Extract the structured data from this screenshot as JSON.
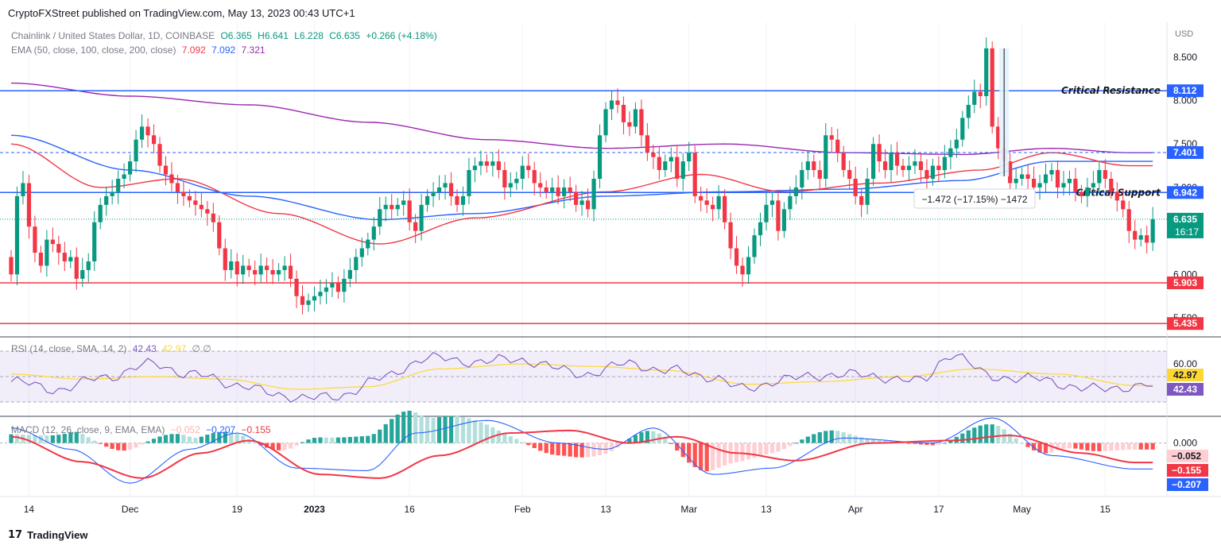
{
  "header": {
    "published": "CryptoFXStreet published on TradingView.com, May 13, 2023 00:43 UTC+1"
  },
  "footer": {
    "brand": "TradingView"
  },
  "legend": {
    "symbol": "Chainlink / United States Dollar, 1D, COINBASE",
    "o": "O6.365",
    "h": "H6.641",
    "l": "L6.228",
    "c": "C6.635",
    "chg": "+0.266 (+4.18%)",
    "ema_label": "EMA (50, close, 100, close, 200, close)",
    "ema50": "7.092",
    "ema100": "7.092",
    "ema200": "7.321",
    "rsi_label": "RSI (14, close, SMA, 14, 2)",
    "rsi_val": "42.43",
    "rsi_sma": "42.97",
    "rsi_extra": "∅ ∅",
    "macd_label": "MACD (12, 26, close, 9, EMA, EMA)",
    "macd_hist": "−0.052",
    "macd_line": "−0.207",
    "macd_signal": "−0.155"
  },
  "colors": {
    "up": "#089981",
    "down": "#f23645",
    "ema50": "#f23645",
    "ema100": "#2962ff",
    "ema200": "#9c27b0",
    "rsi": "#7e57c2",
    "rsi_sma": "#fdd835",
    "hline_blue": "#2962ff",
    "hline_red": "#f23645"
  },
  "chart_data": [
    {
      "type": "candlestick",
      "title": "Chainlink / United States Dollar, 1D, COINBASE",
      "ylabel": "USD",
      "ylim": [
        5.3,
        8.9
      ],
      "y_ticks": [
        "8.500",
        "8.000",
        "7.500",
        "7.000",
        "6.500",
        "6.000",
        "5.500"
      ],
      "x_tick_labels": [
        "14",
        "Dec",
        "19",
        "2023",
        "16",
        "Feb",
        "13",
        "Mar",
        "13",
        "Apr",
        "17",
        "May",
        "15"
      ],
      "x_tick_days": [
        3,
        20,
        38,
        51,
        67,
        86,
        100,
        114,
        127,
        142,
        156,
        170,
        184
      ],
      "closes": [
        6.0,
        6.9,
        7.05,
        6.55,
        6.25,
        6.1,
        6.4,
        6.35,
        6.25,
        6.15,
        6.2,
        5.95,
        6.05,
        6.15,
        6.6,
        6.8,
        6.9,
        6.95,
        7.1,
        7.15,
        7.3,
        7.55,
        7.7,
        7.6,
        7.5,
        7.25,
        7.15,
        7.05,
        6.95,
        6.9,
        6.85,
        6.8,
        6.75,
        6.7,
        6.6,
        6.3,
        6.05,
        6.15,
        6.0,
        6.1,
        6.05,
        6.0,
        6.1,
        6.05,
        6.0,
        6.05,
        6.1,
        5.95,
        5.75,
        5.65,
        5.7,
        5.75,
        5.8,
        5.85,
        5.9,
        5.8,
        5.95,
        6.05,
        6.2,
        6.3,
        6.4,
        6.55,
        6.75,
        6.8,
        6.75,
        6.8,
        6.85,
        6.6,
        6.5,
        6.8,
        6.9,
        6.95,
        7.0,
        7.05,
        6.9,
        6.8,
        6.9,
        7.2,
        7.25,
        7.3,
        7.25,
        7.3,
        7.2,
        7.0,
        7.05,
        7.1,
        7.25,
        7.2,
        7.05,
        7.0,
        6.95,
        7.0,
        6.9,
        7.0,
        6.95,
        6.8,
        6.85,
        6.75,
        7.1,
        7.6,
        7.9,
        8.0,
        7.95,
        7.75,
        7.7,
        7.9,
        7.6,
        7.4,
        7.35,
        7.2,
        7.3,
        7.35,
        7.1,
        7.3,
        7.4,
        6.9,
        6.85,
        6.8,
        6.75,
        6.9,
        6.6,
        6.3,
        6.1,
        6.0,
        6.2,
        6.45,
        6.6,
        6.8,
        6.85,
        6.5,
        6.75,
        6.9,
        7.0,
        7.2,
        7.3,
        7.2,
        7.1,
        7.6,
        7.55,
        7.4,
        7.2,
        7.1,
        6.9,
        6.8,
        7.1,
        7.5,
        7.3,
        7.2,
        7.4,
        7.25,
        7.2,
        7.25,
        7.3,
        7.2,
        7.1,
        7.25,
        7.2,
        7.35,
        7.45,
        7.55,
        7.8,
        7.95,
        8.1,
        8.05,
        8.6,
        7.7,
        7.45,
        7.3,
        7.05,
        7.1,
        7.15,
        7.1,
        7.0,
        7.05,
        7.15,
        7.2,
        7.0,
        7.05,
        7.1,
        6.95,
        6.9,
        7.0,
        7.05,
        7.2,
        7.1,
        6.95,
        6.85,
        6.75,
        6.5,
        6.4,
        6.45,
        6.365,
        6.635
      ],
      "ema50_anchors": [
        [
          0,
          7.5
        ],
        [
          15,
          7.0
        ],
        [
          28,
          7.1
        ],
        [
          45,
          6.7
        ],
        [
          62,
          6.35
        ],
        [
          78,
          6.65
        ],
        [
          100,
          6.95
        ],
        [
          116,
          7.15
        ],
        [
          130,
          6.95
        ],
        [
          146,
          7.05
        ],
        [
          163,
          7.2
        ],
        [
          175,
          7.4
        ],
        [
          188,
          7.25
        ]
      ],
      "ema100_anchors": [
        [
          0,
          7.6
        ],
        [
          20,
          7.2
        ],
        [
          40,
          6.9
        ],
        [
          62,
          6.63
        ],
        [
          78,
          6.7
        ],
        [
          100,
          6.9
        ],
        [
          120,
          6.95
        ],
        [
          140,
          6.98
        ],
        [
          160,
          7.08
        ],
        [
          175,
          7.3
        ],
        [
          188,
          7.3
        ]
      ],
      "ema200_anchors": [
        [
          0,
          8.2
        ],
        [
          20,
          8.05
        ],
        [
          40,
          7.95
        ],
        [
          60,
          7.75
        ],
        [
          80,
          7.55
        ],
        [
          100,
          7.45
        ],
        [
          120,
          7.5
        ],
        [
          140,
          7.4
        ],
        [
          160,
          7.38
        ],
        [
          175,
          7.45
        ],
        [
          188,
          7.4
        ]
      ],
      "levels": [
        {
          "label": "Critical Resistance",
          "price_label": "8.112",
          "value": 8.112,
          "color": "#2962ff",
          "style": "solid"
        },
        {
          "label": "",
          "price_label": "7.401",
          "value": 7.401,
          "color": "#2962ff",
          "style": "dashed"
        },
        {
          "label": "Critical Support",
          "price_label": "6.942",
          "value": 6.942,
          "color": "#2962ff",
          "style": "solid"
        },
        {
          "label": "",
          "price_label": "5.903",
          "value": 5.903,
          "color": "#f23645",
          "style": "solid"
        },
        {
          "label": "",
          "price_label": "5.435",
          "value": 5.435,
          "color": "#f23645",
          "style": "solid"
        }
      ],
      "last_price_label": "6.635",
      "countdown": "16:17",
      "measure": {
        "text": "−1.472 (−17.15%) −1472",
        "from": 8.6,
        "to": 7.128
      }
    },
    {
      "type": "line",
      "title": "RSI (14, close, SMA, 14, 2)",
      "ylim": [
        20,
        80
      ],
      "y_ticks": [
        "60.00"
      ],
      "band": [
        30,
        70
      ],
      "rsi_anchors": [
        [
          0,
          46
        ],
        [
          8,
          40
        ],
        [
          16,
          50
        ],
        [
          24,
          60
        ],
        [
          30,
          52
        ],
        [
          38,
          44
        ],
        [
          45,
          35
        ],
        [
          54,
          33
        ],
        [
          62,
          48
        ],
        [
          70,
          65
        ],
        [
          76,
          62
        ],
        [
          86,
          63
        ],
        [
          96,
          52
        ],
        [
          104,
          60
        ],
        [
          110,
          55
        ],
        [
          118,
          50
        ],
        [
          123,
          40
        ],
        [
          130,
          48
        ],
        [
          139,
          52
        ],
        [
          146,
          50
        ],
        [
          153,
          46
        ],
        [
          158,
          68
        ],
        [
          165,
          50
        ],
        [
          172,
          48
        ],
        [
          182,
          40
        ],
        [
          189,
          42.43
        ]
      ],
      "sma_anchors": [
        [
          0,
          52
        ],
        [
          12,
          48
        ],
        [
          24,
          50
        ],
        [
          36,
          48
        ],
        [
          48,
          40
        ],
        [
          60,
          42
        ],
        [
          72,
          56
        ],
        [
          86,
          60
        ],
        [
          98,
          58
        ],
        [
          110,
          55
        ],
        [
          124,
          44
        ],
        [
          136,
          46
        ],
        [
          150,
          50
        ],
        [
          162,
          56
        ],
        [
          176,
          52
        ],
        [
          189,
          42.97
        ]
      ],
      "value_labels": [
        "42.97",
        "42.43"
      ]
    },
    {
      "type": "bar",
      "title": "MACD (12, 26, close, 9, EMA, EMA)",
      "ylim": [
        -0.42,
        0.2
      ],
      "y_ticks": [
        "0.000"
      ],
      "macd_anchors": [
        [
          0,
          0.12
        ],
        [
          10,
          -0.05
        ],
        [
          20,
          -0.32
        ],
        [
          30,
          -0.05
        ],
        [
          38,
          0.08
        ],
        [
          48,
          -0.2
        ],
        [
          60,
          -0.22
        ],
        [
          68,
          0.08
        ],
        [
          80,
          0.18
        ],
        [
          92,
          0.0
        ],
        [
          100,
          -0.05
        ],
        [
          108,
          0.12
        ],
        [
          118,
          -0.25
        ],
        [
          128,
          -0.2
        ],
        [
          140,
          0.04
        ],
        [
          155,
          0.0
        ],
        [
          165,
          0.2
        ],
        [
          175,
          -0.1
        ],
        [
          189,
          -0.207
        ]
      ],
      "signal_anchors": [
        [
          0,
          0.05
        ],
        [
          12,
          -0.15
        ],
        [
          22,
          -0.28
        ],
        [
          32,
          -0.08
        ],
        [
          40,
          0.02
        ],
        [
          52,
          -0.25
        ],
        [
          62,
          -0.28
        ],
        [
          72,
          -0.1
        ],
        [
          84,
          0.08
        ],
        [
          94,
          0.1
        ],
        [
          104,
          0.0
        ],
        [
          112,
          0.05
        ],
        [
          122,
          -0.08
        ],
        [
          132,
          -0.14
        ],
        [
          145,
          0.0
        ],
        [
          158,
          0.02
        ],
        [
          168,
          0.06
        ],
        [
          180,
          -0.08
        ],
        [
          189,
          -0.155
        ]
      ],
      "value_labels": [
        "−0.052",
        "−0.155",
        "−0.207"
      ]
    }
  ]
}
